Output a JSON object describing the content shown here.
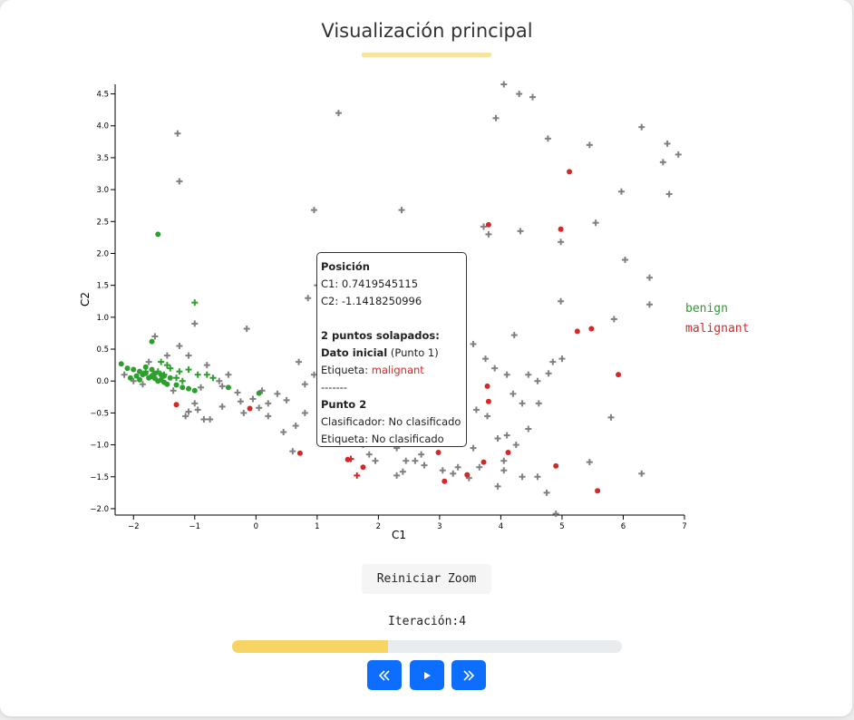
{
  "title": "Visualización principal",
  "chart_data": {
    "type": "scatter",
    "xlabel": "C1",
    "ylabel": "C2",
    "xlim": [
      -2.3,
      7
    ],
    "ylim": [
      -2.1,
      4.65
    ],
    "xticks": [
      "−2",
      "−1",
      "0",
      "1",
      "2",
      "3",
      "4",
      "5",
      "6",
      "7"
    ],
    "yticks": [
      "−2.0",
      "−1.5",
      "−1.0",
      "−0.5",
      "0.0",
      "0.5",
      "1.0",
      "1.5",
      "2.0",
      "2.5",
      "3.0",
      "3.5",
      "4.0",
      "4.5"
    ],
    "legend_position": "right",
    "series": [
      {
        "name": "benign",
        "color": "#2ca02c",
        "marker": "circle",
        "points": [
          [
            -1.6,
            2.3
          ],
          [
            -1.7,
            0.62
          ],
          [
            -2.2,
            0.27
          ],
          [
            -2.1,
            0.2
          ],
          [
            -2.0,
            0.18
          ],
          [
            -1.9,
            0.15
          ],
          [
            -1.85,
            0.1
          ],
          [
            -1.8,
            0.12
          ],
          [
            -1.7,
            0.08
          ],
          [
            -1.75,
            0.05
          ],
          [
            -1.65,
            0.04
          ],
          [
            -1.6,
            0.0
          ],
          [
            -1.55,
            0.02
          ],
          [
            -1.5,
            -0.02
          ],
          [
            -1.45,
            -0.05
          ],
          [
            -1.4,
            0.05
          ],
          [
            -1.3,
            -0.06
          ],
          [
            -1.2,
            -0.1
          ],
          [
            -1.1,
            -0.12
          ],
          [
            -1.0,
            -0.15
          ],
          [
            -0.45,
            -0.1
          ],
          [
            0.05,
            -0.19
          ],
          [
            -2.05,
            0.05
          ],
          [
            -1.95,
            0.08
          ],
          [
            -1.9,
            0.02
          ],
          [
            -1.8,
            0.22
          ],
          [
            -1.7,
            0.18
          ],
          [
            -1.65,
            0.12
          ],
          [
            -1.55,
            0.1
          ],
          [
            -1.5,
            0.08
          ]
        ]
      },
      {
        "name": "malignant",
        "color": "#d62728",
        "marker": "circle",
        "points": [
          [
            -1.3,
            -0.37
          ],
          [
            -0.1,
            -0.43
          ],
          [
            0.72,
            -1.13
          ],
          [
            1.5,
            -1.23
          ],
          [
            1.75,
            -1.35
          ],
          [
            2.98,
            -1.12
          ],
          [
            3.08,
            -1.57
          ],
          [
            3.45,
            -1.47
          ],
          [
            3.72,
            -1.27
          ],
          [
            3.78,
            -0.08
          ],
          [
            3.8,
            -0.32
          ],
          [
            4.12,
            -1.12
          ],
          [
            3.8,
            2.45
          ],
          [
            4.98,
            2.38
          ],
          [
            5.12,
            3.28
          ],
          [
            5.25,
            0.78
          ],
          [
            5.48,
            0.82
          ],
          [
            5.92,
            0.1
          ],
          [
            4.9,
            -1.33
          ],
          [
            5.58,
            -1.72
          ]
        ]
      },
      {
        "name": "",
        "color": "#d62728",
        "marker": "plus",
        "points": [
          [
            1.65,
            -1.48
          ],
          [
            1.55,
            -1.22
          ]
        ]
      },
      {
        "name": "",
        "color": "#2ca02c",
        "marker": "plus",
        "points": [
          [
            -1.0,
            1.23
          ],
          [
            -1.55,
            0.3
          ],
          [
            -1.6,
            0.15
          ],
          [
            -1.8,
            0.15
          ],
          [
            -1.5,
            0.1
          ],
          [
            -1.4,
            0.2
          ],
          [
            -1.25,
            0.15
          ],
          [
            -1.1,
            0.18
          ],
          [
            -0.95,
            0.1
          ],
          [
            -0.8,
            0.1
          ],
          [
            -0.7,
            0.05
          ],
          [
            -1.45,
            0.25
          ],
          [
            -1.3,
            0.05
          ],
          [
            -1.2,
            0.0
          ],
          [
            -1.7,
            0.08
          ]
        ]
      },
      {
        "name": "",
        "color": "#808080",
        "marker": "plus",
        "points": [
          [
            -1.28,
            3.88
          ],
          [
            -1.25,
            3.13
          ],
          [
            1.35,
            4.2
          ],
          [
            0.95,
            2.68
          ],
          [
            2.38,
            2.68
          ],
          [
            4.05,
            4.65
          ],
          [
            4.3,
            4.5
          ],
          [
            4.52,
            4.45
          ],
          [
            3.92,
            4.12
          ],
          [
            4.77,
            3.8
          ],
          [
            5.45,
            3.7
          ],
          [
            6.3,
            3.98
          ],
          [
            6.72,
            3.72
          ],
          [
            6.65,
            3.43
          ],
          [
            6.9,
            3.55
          ],
          [
            6.75,
            2.93
          ],
          [
            5.97,
            2.97
          ],
          [
            5.55,
            2.48
          ],
          [
            4.98,
            2.18
          ],
          [
            4.32,
            2.35
          ],
          [
            3.72,
            2.42
          ],
          [
            3.8,
            2.3
          ],
          [
            6.03,
            1.9
          ],
          [
            6.43,
            1.62
          ],
          [
            6.43,
            1.2
          ],
          [
            4.98,
            1.25
          ],
          [
            5.85,
            0.97
          ],
          [
            -1.0,
            0.9
          ],
          [
            -0.15,
            0.82
          ],
          [
            -1.65,
            0.7
          ],
          [
            -1.25,
            0.55
          ],
          [
            -0.45,
            0.1
          ],
          [
            -0.6,
            0.0
          ],
          [
            -0.9,
            -0.1
          ],
          [
            -1.0,
            -0.35
          ],
          [
            -1.1,
            -0.48
          ],
          [
            -0.85,
            -0.6
          ],
          [
            -0.55,
            -0.4
          ],
          [
            -0.25,
            -0.32
          ],
          [
            0.2,
            -0.55
          ],
          [
            0.45,
            -0.8
          ],
          [
            0.65,
            -0.7
          ],
          [
            0.6,
            -1.1
          ],
          [
            0.8,
            -0.5
          ],
          [
            1.05,
            -0.45
          ],
          [
            1.2,
            -0.65
          ],
          [
            1.5,
            -0.7
          ],
          [
            3.6,
            -0.45
          ],
          [
            3.78,
            -0.55
          ],
          [
            4.1,
            -0.85
          ],
          [
            4.25,
            -1.0
          ],
          [
            4.05,
            -1.25
          ],
          [
            4.35,
            -1.5
          ],
          [
            4.6,
            -1.5
          ],
          [
            4.75,
            -1.75
          ],
          [
            4.9,
            -2.08
          ],
          [
            3.95,
            -1.65
          ],
          [
            3.48,
            -1.52
          ],
          [
            3.22,
            -1.45
          ],
          [
            3.05,
            -1.4
          ],
          [
            2.45,
            -1.25
          ],
          [
            2.3,
            -1.48
          ],
          [
            1.75,
            -1.0
          ],
          [
            1.85,
            -1.15
          ],
          [
            1.95,
            -1.25
          ],
          [
            2.7,
            -1.15
          ],
          [
            2.85,
            -0.95
          ],
          [
            3.55,
            -1.05
          ],
          [
            3.95,
            -0.9
          ],
          [
            4.35,
            -0.35
          ],
          [
            4.2,
            -0.2
          ],
          [
            4.45,
            0.1
          ],
          [
            4.6,
            0.0
          ],
          [
            4.22,
            0.72
          ],
          [
            3.55,
            0.58
          ],
          [
            3.75,
            0.35
          ],
          [
            3.9,
            0.2
          ],
          [
            4.1,
            0.1
          ],
          [
            4.78,
            0.12
          ],
          [
            4.85,
            0.3
          ],
          [
            5.0,
            0.35
          ],
          [
            5.45,
            -1.27
          ],
          [
            6.3,
            -1.45
          ],
          [
            5.8,
            -0.57
          ],
          [
            4.62,
            -0.35
          ],
          [
            4.45,
            -0.75
          ],
          [
            1.05,
            0.3
          ],
          [
            0.95,
            0.1
          ],
          [
            0.8,
            -0.05
          ],
          [
            0.5,
            -0.3
          ],
          [
            0.35,
            -0.2
          ],
          [
            0.7,
            0.3
          ],
          [
            1.0,
            1.5
          ],
          [
            1.1,
            1.45
          ],
          [
            0.85,
            1.3
          ],
          [
            0.2,
            -0.35
          ],
          [
            0.1,
            -0.15
          ],
          [
            -0.3,
            -0.18
          ],
          [
            -0.05,
            -0.28
          ],
          [
            0.05,
            -0.42
          ],
          [
            -0.2,
            -0.5
          ],
          [
            -0.75,
            -0.6
          ],
          [
            -0.95,
            -0.45
          ],
          [
            -1.15,
            -0.55
          ],
          [
            -1.35,
            -0.15
          ],
          [
            -1.85,
            -0.05
          ],
          [
            -2.0,
            0.0
          ],
          [
            -2.15,
            0.1
          ],
          [
            -1.75,
            0.3
          ],
          [
            -1.45,
            0.4
          ],
          [
            -1.1,
            0.4
          ],
          [
            -0.8,
            0.25
          ],
          [
            -0.55,
            -0.08
          ],
          [
            2.3,
            -1.05
          ],
          [
            2.6,
            -1.25
          ],
          [
            2.4,
            -1.42
          ],
          [
            2.75,
            -1.32
          ],
          [
            3.3,
            -1.35
          ],
          [
            3.65,
            -1.35
          ],
          [
            4.05,
            -1.4
          ]
        ]
      }
    ]
  },
  "legend": {
    "benign": "benign",
    "malignant": "malignant"
  },
  "tooltip": {
    "heading": "Posición",
    "c1": "C1: 0.7419545115",
    "c2": "C2: -1.1418250996",
    "overlap": "2 puntos solapados:",
    "p1_title": "Dato inicial",
    "p1_sub": " (Punto 1)",
    "p1_label_key": "Etiqueta: ",
    "p1_label_val": "malignant",
    "sep": "-------",
    "p2_title": "Punto 2",
    "p2_classifier": "Clasificador: No clasificado",
    "p2_label": "Etiqueta: No clasificado"
  },
  "controls": {
    "reset_zoom": "Reiniciar Zoom",
    "iteration": "Iteración:4",
    "progress": 0.4,
    "rewind_icon": "double-chevron-left-icon",
    "play_icon": "play-icon",
    "forward_icon": "double-chevron-right-icon",
    "accent_color": "#0d6efd",
    "progress_color": "#f6d565"
  }
}
